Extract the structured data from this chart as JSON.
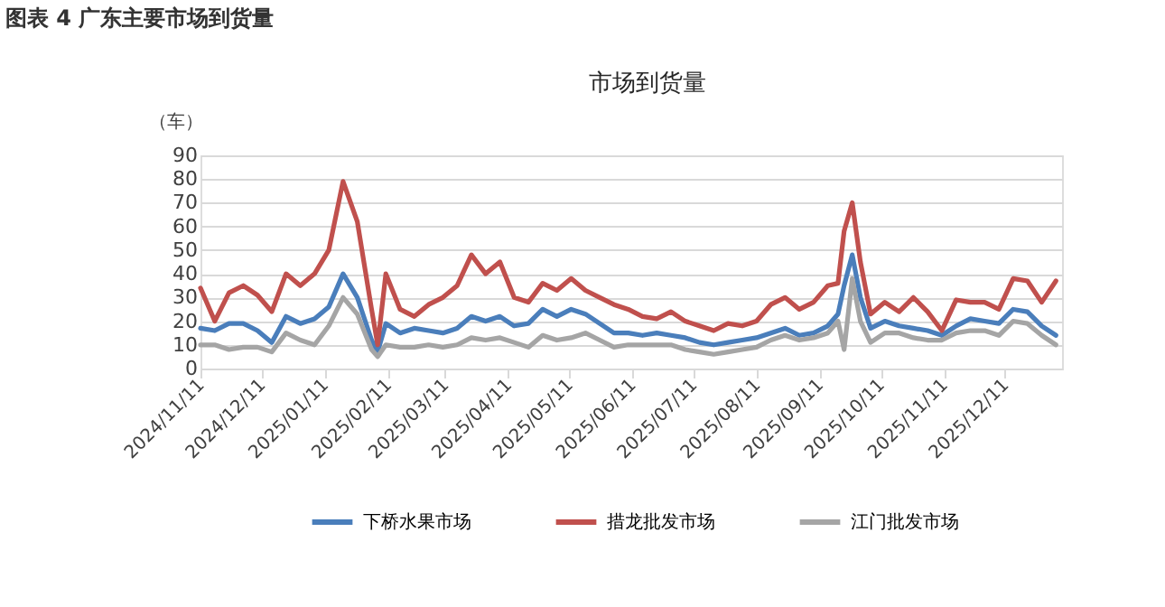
{
  "chart_data": {
    "type": "line",
    "title": "市场到货量",
    "ylabel": "（车）",
    "annotations": [
      "图表 4 广东主要市场到货量"
    ],
    "x": [
      "2024-11-11",
      "2024-11-18",
      "2024-11-25",
      "2024-12-02",
      "2024-12-09",
      "2024-12-16",
      "2024-12-23",
      "2024-12-30",
      "2025-01-06",
      "2025-01-13",
      "2025-01-20",
      "2025-01-27",
      "2025-02-03",
      "2025-02-06",
      "2025-02-10",
      "2025-02-17",
      "2025-02-24",
      "2025-03-03",
      "2025-03-10",
      "2025-03-17",
      "2025-03-24",
      "2025-03-31",
      "2025-04-07",
      "2025-04-14",
      "2025-04-21",
      "2025-04-28",
      "2025-05-05",
      "2025-05-12",
      "2025-05-19",
      "2025-05-26",
      "2025-06-02",
      "2025-06-09",
      "2025-06-16",
      "2025-06-23",
      "2025-06-30",
      "2025-07-07",
      "2025-07-14",
      "2025-07-21",
      "2025-07-28",
      "2025-08-04",
      "2025-08-11",
      "2025-08-18",
      "2025-08-25",
      "2025-09-01",
      "2025-09-08",
      "2025-09-15",
      "2025-09-20",
      "2025-09-23",
      "2025-09-27",
      "2025-10-01",
      "2025-10-06",
      "2025-10-13",
      "2025-10-20",
      "2025-10-27",
      "2025-11-03",
      "2025-11-10",
      "2025-11-17",
      "2025-11-24",
      "2025-12-01",
      "2025-12-08",
      "2025-12-15",
      "2025-12-22",
      "2025-12-29",
      "2026-01-05"
    ],
    "series": [
      {
        "name": "下桥水果市场",
        "color": "#4a7ebb",
        "values": [
          17,
          16,
          19,
          19,
          16,
          11,
          22,
          19,
          21,
          26,
          40,
          30,
          12,
          7,
          19,
          15,
          17,
          16,
          15,
          17,
          22,
          20,
          22,
          18,
          19,
          25,
          22,
          25,
          23,
          19,
          15,
          15,
          14,
          15,
          14,
          13,
          11,
          10,
          11,
          12,
          13,
          15,
          17,
          14,
          15,
          18,
          23,
          35,
          48,
          30,
          17,
          20,
          18,
          17,
          16,
          14,
          18,
          21,
          20,
          19,
          25,
          24,
          18,
          14
        ]
      },
      {
        "name": "措龙批发市场",
        "color": "#c0504d",
        "values": [
          34,
          20,
          32,
          35,
          31,
          24,
          40,
          35,
          40,
          50,
          79,
          62,
          25,
          10,
          40,
          25,
          22,
          27,
          30,
          35,
          48,
          40,
          45,
          30,
          28,
          36,
          33,
          38,
          33,
          30,
          27,
          25,
          22,
          21,
          24,
          20,
          18,
          16,
          19,
          18,
          20,
          27,
          30,
          25,
          28,
          35,
          36,
          58,
          70,
          45,
          23,
          28,
          24,
          30,
          24,
          16,
          29,
          28,
          28,
          25,
          38,
          37,
          28,
          37
        ]
      },
      {
        "name": "江门批发市场",
        "color": "#a5a5a5",
        "values": [
          10,
          10,
          8,
          9,
          9,
          7,
          15,
          12,
          10,
          18,
          30,
          23,
          8,
          5,
          10,
          9,
          9,
          10,
          9,
          10,
          13,
          12,
          13,
          11,
          9,
          14,
          12,
          13,
          15,
          12,
          9,
          10,
          10,
          10,
          10,
          8,
          7,
          6,
          7,
          8,
          9,
          12,
          14,
          12,
          13,
          15,
          20,
          8,
          38,
          20,
          11,
          15,
          15,
          13,
          12,
          12,
          15,
          16,
          16,
          14,
          20,
          19,
          14,
          10
        ]
      }
    ],
    "xlim": [
      "2024-11-11",
      "2026-01-08"
    ],
    "xticks": [
      {
        "value": "2024-11-11",
        "label": "2024/11/11"
      },
      {
        "value": "2024-12-11",
        "label": "2024/12/11"
      },
      {
        "value": "2025-01-11",
        "label": "2025/01/11"
      },
      {
        "value": "2025-02-11",
        "label": "2025/02/11"
      },
      {
        "value": "2025-03-11",
        "label": "2025/03/11"
      },
      {
        "value": "2025-04-11",
        "label": "2025/04/11"
      },
      {
        "value": "2025-05-11",
        "label": "2025/05/11"
      },
      {
        "value": "2025-06-11",
        "label": "2025/06/11"
      },
      {
        "value": "2025-07-11",
        "label": "2025/07/11"
      },
      {
        "value": "2025-08-11",
        "label": "2025/08/11"
      },
      {
        "value": "2025-09-11",
        "label": "2025/09/11"
      },
      {
        "value": "2025-10-11",
        "label": "2025/10/11"
      },
      {
        "value": "2025-11-11",
        "label": "2025/11/11"
      },
      {
        "value": "2025-12-11",
        "label": "2025/12/11"
      }
    ],
    "ylim": [
      0,
      90
    ],
    "yticks": [
      0,
      10,
      20,
      30,
      40,
      50,
      60,
      70,
      80,
      90
    ],
    "grid": "y",
    "legend": "bottom",
    "marker": "none",
    "line_style": "solid"
  }
}
